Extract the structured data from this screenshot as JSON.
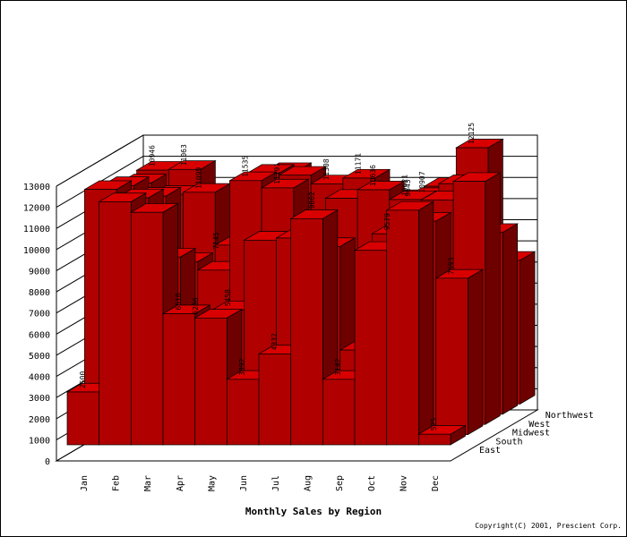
{
  "title": "Monthly Sales by Region",
  "copyright": "Copyright(C) 2001, Prescient Corp.",
  "chart_data": {
    "type": "bar",
    "subtype": "3d-depth",
    "categories": [
      "Jan",
      "Feb",
      "Mar",
      "Apr",
      "May",
      "Jun",
      "Jul",
      "Aug",
      "Sep",
      "Oct",
      "Nov",
      "Dec"
    ],
    "regions": [
      "East",
      "South",
      "Midwest",
      "West",
      "Northwest"
    ],
    "yticks": [
      0,
      1000,
      2000,
      3000,
      4000,
      5000,
      6000,
      7000,
      8000,
      9000,
      10000,
      11000,
      12000,
      13000
    ],
    "ylim": [
      0,
      13000
    ],
    "bar_color": "#b00000",
    "series": [
      {
        "name": "East",
        "values": [
          2500,
          11500,
          11000,
          6200,
          6000,
          3100,
          4300,
          10700,
          3100,
          9200,
          11100,
          500
        ]
      },
      {
        "name": "South",
        "values": [
          11600,
          11200,
          8400,
          5500,
          5900,
          9200,
          9300,
          8900,
          4000,
          9500,
          10100,
          7400
        ]
      },
      {
        "name": "Midwest",
        "values": [
          11300,
          10800,
          7700,
          7300,
          11535,
          11191,
          9400,
          10700,
          11100,
          10636,
          10621,
          11500
        ]
      },
      {
        "name": "West",
        "values": [
          10946,
          10400,
          10500,
          8000,
          11400,
          11308,
          10900,
          11171,
          10200,
          10300,
          10907,
          8600
        ]
      },
      {
        "name": "Northwest",
        "values": [
          11063,
          11099,
          7145,
          8200,
          11000,
          9062,
          10300,
          9000,
          9643,
          10300,
          12125,
          6800
        ]
      }
    ],
    "value_labels": [
      {
        "text": "2500"
      },
      {
        "text": "10946"
      },
      {
        "text": "11063"
      },
      {
        "text": "11099"
      },
      {
        "text": "7145"
      },
      {
        "text": "6510"
      },
      {
        "text": "6206"
      },
      {
        "text": "5458"
      },
      {
        "text": "11535"
      },
      {
        "text": "11191"
      },
      {
        "text": "9062"
      },
      {
        "text": "11308"
      },
      {
        "text": "3092"
      },
      {
        "text": "4332"
      },
      {
        "text": "11171"
      },
      {
        "text": "3142"
      },
      {
        "text": "10636"
      },
      {
        "text": "9643"
      },
      {
        "text": "10621"
      },
      {
        "text": "10907"
      },
      {
        "text": "9579"
      },
      {
        "text": "12125"
      },
      {
        "text": "7693"
      },
      {
        "text": "525"
      }
    ]
  }
}
